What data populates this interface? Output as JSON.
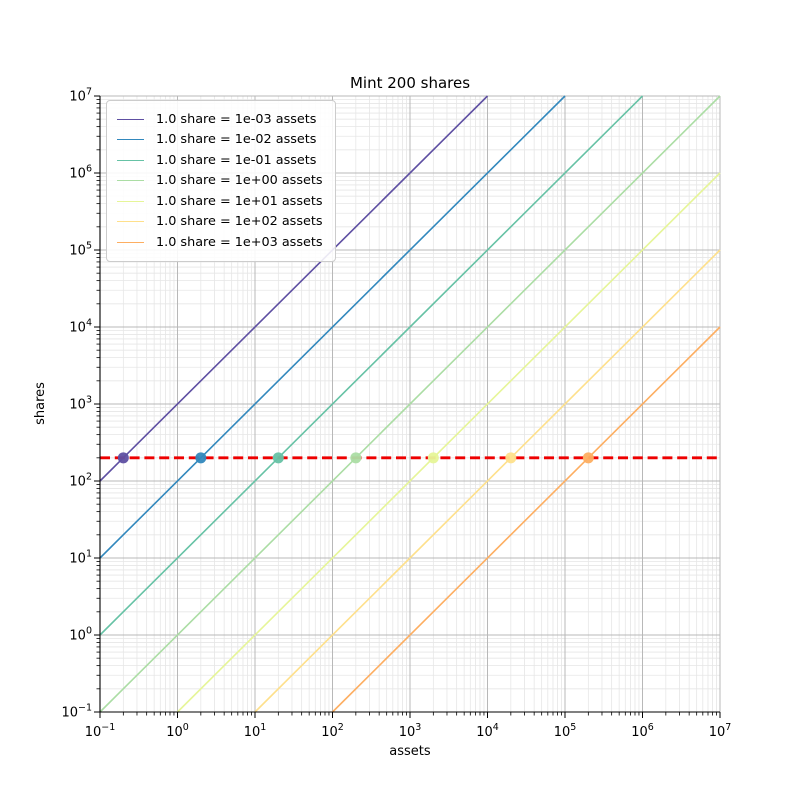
{
  "window": {
    "background": "#ffffff"
  },
  "chart_data": {
    "type": "line",
    "title": "Mint 200 shares",
    "xlabel": "assets",
    "ylabel": "shares",
    "xscale": "log",
    "yscale": "log",
    "xlim": [
      0.1,
      10000000
    ],
    "ylim": [
      0.1,
      10000000
    ],
    "xticks_exponents": [
      -1,
      0,
      1,
      2,
      3,
      4,
      5,
      6,
      7
    ],
    "yticks_exponents": [
      -1,
      0,
      1,
      2,
      3,
      4,
      5,
      6,
      7
    ],
    "grid": {
      "visible": true,
      "major_color": "#b8b8b8",
      "minor_color": "#e6e6e6",
      "minor_subs": [
        2,
        3,
        4,
        5,
        6,
        7,
        8,
        9
      ]
    },
    "target_line": {
      "y": 200,
      "color": "#ee0000",
      "style": "dashed",
      "meaning": "200 shares"
    },
    "series": [
      {
        "label": "1.0 share = 1e-03 assets",
        "assets_per_share": 0.001,
        "color": "#5e4fa2",
        "marker": {
          "x": 0.2,
          "y": 200
        }
      },
      {
        "label": "1.0 share = 1e-02 assets",
        "assets_per_share": 0.01,
        "color": "#3288bd",
        "marker": {
          "x": 2,
          "y": 200
        }
      },
      {
        "label": "1.0 share = 1e-01 assets",
        "assets_per_share": 0.1,
        "color": "#66c2a5",
        "marker": {
          "x": 20,
          "y": 200
        }
      },
      {
        "label": "1.0 share = 1e+00 assets",
        "assets_per_share": 1,
        "color": "#abdda4",
        "marker": {
          "x": 200,
          "y": 200
        }
      },
      {
        "label": "1.0 share = 1e+01 assets",
        "assets_per_share": 10,
        "color": "#e6f598",
        "marker": {
          "x": 2000,
          "y": 200
        }
      },
      {
        "label": "1.0 share = 1e+02 assets",
        "assets_per_share": 100,
        "color": "#fee08b",
        "marker": {
          "x": 20000,
          "y": 200
        }
      },
      {
        "label": "1.0 share = 1e+03 assets",
        "assets_per_share": 1000,
        "color": "#fdae61",
        "marker": {
          "x": 200000,
          "y": 200
        }
      }
    ],
    "legend": {
      "position": "upper-left"
    }
  }
}
